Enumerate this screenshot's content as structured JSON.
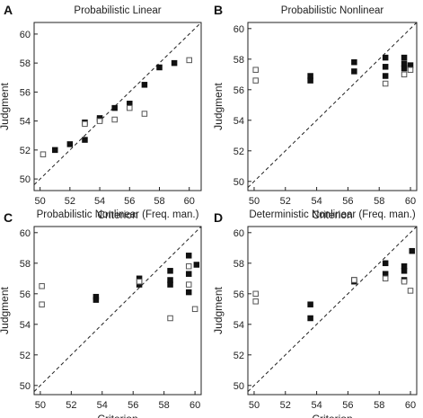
{
  "chart_data": [
    {
      "letter": "A",
      "title": "Probabilistic Linear",
      "type": "scatter",
      "xlabel": "Criterion",
      "ylabel": "Judgment",
      "xlim": [
        49.6,
        60.8
      ],
      "ylim": [
        49.2,
        60.8
      ],
      "xticks": [
        50,
        52,
        54,
        56,
        58,
        60
      ],
      "yticks": [
        50,
        52,
        54,
        56,
        58,
        60
      ],
      "series": [
        {
          "marker": "filled-square",
          "points": [
            [
              51,
              52.0
            ],
            [
              52,
              52.4
            ],
            [
              53,
              53.9
            ],
            [
              53,
              52.7
            ],
            [
              54,
              54.2
            ],
            [
              54,
              54.1
            ],
            [
              55,
              54.9
            ],
            [
              56,
              55.2
            ],
            [
              57,
              56.5
            ],
            [
              58,
              57.7
            ],
            [
              59,
              58.0
            ]
          ]
        },
        {
          "marker": "open-square",
          "points": [
            [
              50.2,
              51.7
            ],
            [
              53,
              53.8
            ],
            [
              54,
              54.0
            ],
            [
              55,
              54.1
            ],
            [
              56,
              54.9
            ],
            [
              57,
              54.5
            ],
            [
              60,
              58.2
            ]
          ]
        }
      ]
    },
    {
      "letter": "B",
      "title": "Probabilistic Nonlinear",
      "type": "scatter",
      "xlabel": "Criterion",
      "ylabel": "Judgment",
      "xlim": [
        49.6,
        60.4
      ],
      "ylim": [
        49.4,
        60.4
      ],
      "xticks": [
        50,
        52,
        54,
        56,
        58,
        60
      ],
      "yticks": [
        50,
        52,
        54,
        56,
        58,
        60
      ],
      "series": [
        {
          "marker": "filled-square",
          "points": [
            [
              53.6,
              56.9
            ],
            [
              53.6,
              56.6
            ],
            [
              56.4,
              57.8
            ],
            [
              56.4,
              57.2
            ],
            [
              58.4,
              58.1
            ],
            [
              58.4,
              57.5
            ],
            [
              58.4,
              56.9
            ],
            [
              59.6,
              58.1
            ],
            [
              59.6,
              57.7
            ],
            [
              59.6,
              57.4
            ],
            [
              60.0,
              57.6
            ]
          ]
        },
        {
          "marker": "open-square",
          "points": [
            [
              50.1,
              57.3
            ],
            [
              50.1,
              56.6
            ],
            [
              58.4,
              56.4
            ],
            [
              59.6,
              57.0
            ],
            [
              60.0,
              57.3
            ]
          ]
        }
      ]
    },
    {
      "letter": "C",
      "title": "Probabilistic Nonlinear (Freq. man.)",
      "type": "scatter",
      "xlabel": "Criterion",
      "ylabel": "Judgment",
      "xlim": [
        49.6,
        60.4
      ],
      "ylim": [
        49.4,
        60.4
      ],
      "xticks": [
        50,
        52,
        54,
        56,
        58,
        60
      ],
      "yticks": [
        50,
        52,
        54,
        56,
        58,
        60
      ],
      "series": [
        {
          "marker": "filled-square",
          "points": [
            [
              53.6,
              55.8
            ],
            [
              53.6,
              55.6
            ],
            [
              56.4,
              57.0
            ],
            [
              56.4,
              56.6
            ],
            [
              58.4,
              57.5
            ],
            [
              58.4,
              56.9
            ],
            [
              58.4,
              56.6
            ],
            [
              59.6,
              58.5
            ],
            [
              59.6,
              57.3
            ],
            [
              59.6,
              56.1
            ],
            [
              60.1,
              57.9
            ]
          ]
        },
        {
          "marker": "open-square",
          "points": [
            [
              50.1,
              56.5
            ],
            [
              50.1,
              55.3
            ],
            [
              56.4,
              56.8
            ],
            [
              58.4,
              54.4
            ],
            [
              59.6,
              57.8
            ],
            [
              59.6,
              56.6
            ],
            [
              60.0,
              55.0
            ]
          ]
        }
      ]
    },
    {
      "letter": "D",
      "title": "Deterministic Nonlinear (Freq. man.)",
      "type": "scatter",
      "xlabel": "Criterion",
      "ylabel": "Judgment",
      "xlim": [
        49.6,
        60.4
      ],
      "ylim": [
        49.4,
        60.4
      ],
      "xticks": [
        50,
        52,
        54,
        56,
        58,
        60
      ],
      "yticks": [
        50,
        52,
        54,
        56,
        58,
        60
      ],
      "series": [
        {
          "marker": "filled-square",
          "points": [
            [
              53.6,
              55.3
            ],
            [
              53.6,
              54.4
            ],
            [
              56.4,
              56.9
            ],
            [
              56.4,
              56.8
            ],
            [
              58.4,
              58.0
            ],
            [
              58.4,
              57.3
            ],
            [
              59.6,
              57.8
            ],
            [
              59.6,
              57.5
            ],
            [
              59.6,
              56.9
            ],
            [
              60.1,
              58.8
            ]
          ]
        },
        {
          "marker": "open-square",
          "points": [
            [
              50.1,
              56.0
            ],
            [
              50.1,
              55.5
            ],
            [
              56.4,
              56.9
            ],
            [
              58.4,
              57.0
            ],
            [
              59.6,
              56.8
            ],
            [
              60.0,
              56.2
            ]
          ]
        }
      ]
    }
  ]
}
